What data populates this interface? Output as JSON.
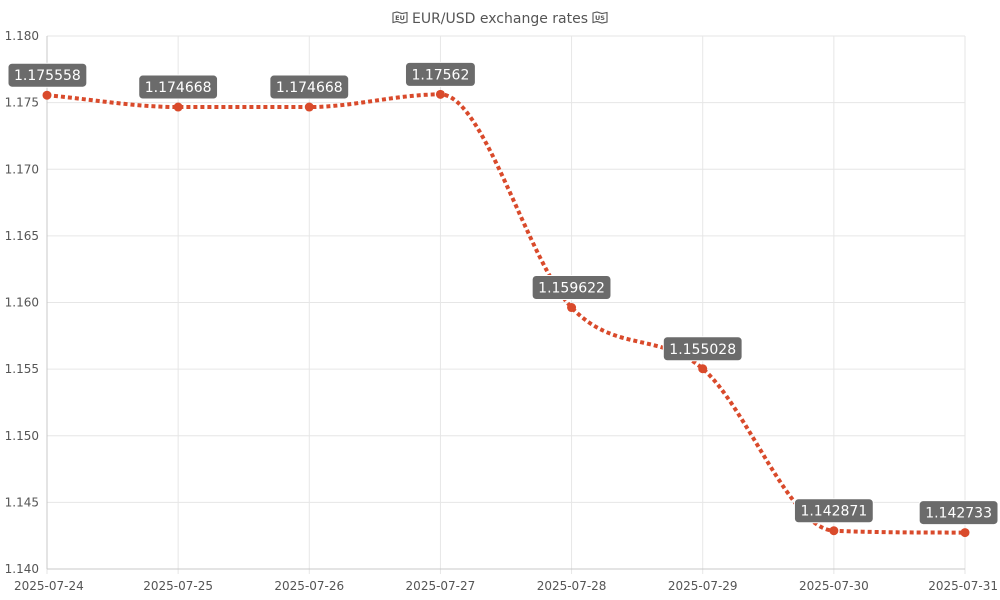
{
  "chart_data": {
    "type": "line",
    "title": "EUR/USD exchange rates",
    "title_icons": [
      "eu-flag-icon",
      "us-flag-icon"
    ],
    "xlabel": "",
    "ylabel": "",
    "categories": [
      "2025-07-24",
      "2025-07-25",
      "2025-07-26",
      "2025-07-27",
      "2025-07-28",
      "2025-07-29",
      "2025-07-30",
      "2025-07-31"
    ],
    "series": [
      {
        "values": [
          1.175558,
          1.174668,
          1.174668,
          1.17562,
          1.159622,
          1.155028,
          1.142871,
          1.142733
        ],
        "color": "#d94a2b"
      }
    ],
    "data_labels": [
      "1.175558",
      "1.174668",
      "1.174668",
      "1.17562",
      "1.159622",
      "1.155028",
      "1.142871",
      "1.142733"
    ],
    "ylim": [
      1.14,
      1.18
    ],
    "yticks": [
      "1.140",
      "1.145",
      "1.150",
      "1.155",
      "1.160",
      "1.165",
      "1.170",
      "1.175",
      "1.180"
    ],
    "grid": true,
    "line_style": "dotted",
    "smooth": true,
    "label_bg_color": "#6b6b6b",
    "grid_color": "#e6e6e6",
    "axis_color": "#c8c8c8",
    "text_color": "#555555"
  }
}
